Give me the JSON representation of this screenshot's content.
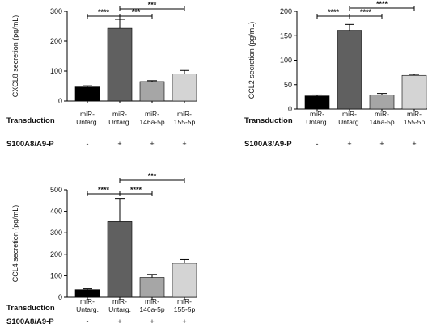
{
  "row_labels": {
    "transduction": "Transduction",
    "treatment": "S100A8/A9-P"
  },
  "chart_data": [
    {
      "type": "bar",
      "ylabel": "CXCL8 secretion (pg/mL)",
      "ylim": [
        0,
        300
      ],
      "yticks": [
        0,
        100,
        200,
        300
      ],
      "categories": [
        "miR-\nUntarg.",
        "miR-\nUntarg.",
        "miR-\n146a-5p",
        "miR-\n155-5p"
      ],
      "treatment": [
        "-",
        "+",
        "+",
        "+"
      ],
      "values": [
        47,
        243,
        65,
        91
      ],
      "errors": [
        4,
        30,
        3,
        11
      ],
      "colors": [
        "#000000",
        "#606060",
        "#a6a6a6",
        "#d4d4d4"
      ],
      "significance": [
        {
          "from": 0,
          "to": 1,
          "label": "****"
        },
        {
          "from": 1,
          "to": 2,
          "label": "***"
        },
        {
          "from": 1,
          "to": 3,
          "label": "***"
        }
      ]
    },
    {
      "type": "bar",
      "ylabel": "CCL2 secretion (pg/mL)",
      "ylim": [
        0,
        200
      ],
      "yticks": [
        0,
        50,
        100,
        150,
        200
      ],
      "categories": [
        "miR-\nUntarg.",
        "miR-\nUntarg.",
        "miR-\n146a-5p",
        "miR-\n155-5p"
      ],
      "treatment": [
        "-",
        "+",
        "+",
        "+"
      ],
      "values": [
        27,
        161,
        29,
        69
      ],
      "errors": [
        2,
        12,
        3,
        2
      ],
      "colors": [
        "#000000",
        "#606060",
        "#a6a6a6",
        "#d4d4d4"
      ],
      "significance": [
        {
          "from": 0,
          "to": 1,
          "label": "****"
        },
        {
          "from": 1,
          "to": 2,
          "label": "****"
        },
        {
          "from": 1,
          "to": 3,
          "label": "****"
        }
      ]
    },
    {
      "type": "bar",
      "ylabel": "CCL4 secretion (pg/mL)",
      "ylim": [
        0,
        500
      ],
      "yticks": [
        0,
        100,
        200,
        300,
        400,
        500
      ],
      "categories": [
        "miR-\nUntarg.",
        "miR-\nUntarg.",
        "miR-\n146a-5p",
        "miR-\n155-5p"
      ],
      "treatment": [
        "-",
        "+",
        "+",
        "+"
      ],
      "values": [
        35,
        352,
        92,
        158
      ],
      "errors": [
        4,
        108,
        14,
        17
      ],
      "colors": [
        "#000000",
        "#606060",
        "#a6a6a6",
        "#d4d4d4"
      ],
      "significance": [
        {
          "from": 0,
          "to": 1,
          "label": "****"
        },
        {
          "from": 1,
          "to": 2,
          "label": "****"
        },
        {
          "from": 1,
          "to": 3,
          "label": "***"
        }
      ]
    }
  ]
}
